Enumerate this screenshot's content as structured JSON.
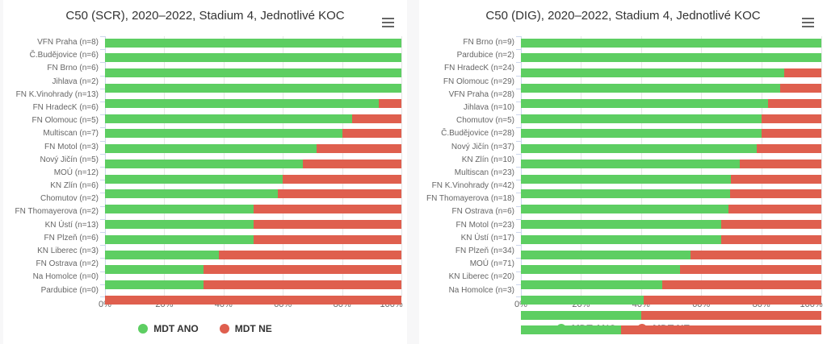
{
  "ui": {
    "chart_menu_icon": "hamburger-icon",
    "page_background": "#f7f7f8",
    "card_background": "#ffffff",
    "grid_color": "#e6e6e6",
    "axis_color": "#ccd6eb",
    "label_color": "#666666",
    "title_color": "#333333"
  },
  "chart_data": [
    {
      "type": "bar",
      "orientation": "horizontal",
      "stacked": "percent",
      "title": "C50 (SCR), 2020–2022, Stadium 4, Jednotlivé KOC",
      "categories": [
        "VFN Praha (n=8)",
        "Č.Budějovice (n=6)",
        "FN Brno (n=6)",
        "Jihlava (n=2)",
        "FN K.Vinohrady (n=13)",
        "FN HradecK (n=6)",
        "FN Olomouc (n=5)",
        "Multiscan (n=7)",
        "FN Motol (n=3)",
        "Nový Jičín (n=5)",
        "MOÚ (n=12)",
        "KN Zlín (n=6)",
        "Chomutov (n=2)",
        "FN Thomayerova (n=2)",
        "KN Ústí (n=13)",
        "FN Plzeň (n=6)",
        "KN Liberec (n=3)",
        "FN Ostrava (n=2)",
        "Na Homolce (n=0)",
        "Pardubice (n=0)"
      ],
      "series": [
        {
          "name": "MDT ANO",
          "color": "#5dce62",
          "values": [
            100,
            100,
            100,
            100,
            92.31,
            83.33,
            80,
            71.43,
            66.67,
            60,
            58.33,
            50,
            50,
            50,
            38.46,
            33.33,
            33.33,
            0,
            0,
            0
          ]
        },
        {
          "name": "MDT NE",
          "color": "#df5f4e",
          "values": [
            0,
            0,
            0,
            0,
            7.69,
            16.67,
            20,
            28.57,
            33.33,
            40,
            41.67,
            50,
            50,
            50,
            61.54,
            66.67,
            66.67,
            100,
            0,
            0
          ]
        }
      ],
      "x_tick_values": [
        0,
        20,
        40,
        60,
        80,
        100
      ],
      "x_tick_labels": [
        "0%",
        "20%",
        "40%",
        "60%",
        "80%",
        "100%"
      ],
      "xlim": [
        0,
        100
      ],
      "grid": true,
      "legend_position": "bottom"
    },
    {
      "type": "bar",
      "orientation": "horizontal",
      "stacked": "percent",
      "title": "C50 (DIG), 2020–2022, Stadium 4, Jednotlivé KOC",
      "categories": [
        "FN Brno (n=9)",
        "Pardubice (n=2)",
        "FN HradecK (n=24)",
        "FN Olomouc (n=29)",
        "VFN Praha (n=28)",
        "Jihlava (n=10)",
        "Chomutov (n=5)",
        "Č.Budějovice (n=28)",
        "Nový Jičín (n=37)",
        "KN Zlín (n=10)",
        "Multiscan (n=23)",
        "FN K.Vinohrady (n=42)",
        "FN Thomayerova (n=18)",
        "FN Ostrava (n=6)",
        "FN Motol (n=23)",
        "KN Ústí (n=17)",
        "FN Plzeň (n=34)",
        "MOÚ (n=71)",
        "KN Liberec (n=20)",
        "Na Homolce (n=3)"
      ],
      "series": [
        {
          "name": "MDT ANO",
          "color": "#5dce62",
          "values": [
            100,
            100,
            87.5,
            86.21,
            82.14,
            80,
            80,
            78.57,
            72.97,
            70,
            69.57,
            69.05,
            66.67,
            66.67,
            56.52,
            52.94,
            47.06,
            40.85,
            40,
            33.33
          ]
        },
        {
          "name": "MDT NE",
          "color": "#df5f4e",
          "values": [
            0,
            0,
            12.5,
            13.79,
            17.86,
            20,
            20,
            21.43,
            27.03,
            30,
            30.43,
            30.95,
            33.33,
            33.33,
            43.48,
            47.06,
            52.94,
            59.15,
            60,
            66.67
          ]
        }
      ],
      "x_tick_values": [
        0,
        20,
        40,
        60,
        80,
        100
      ],
      "x_tick_labels": [
        "0%",
        "20%",
        "40%",
        "60%",
        "80%",
        "100%"
      ],
      "xlim": [
        0,
        100
      ],
      "grid": true,
      "legend_position": "bottom"
    }
  ]
}
